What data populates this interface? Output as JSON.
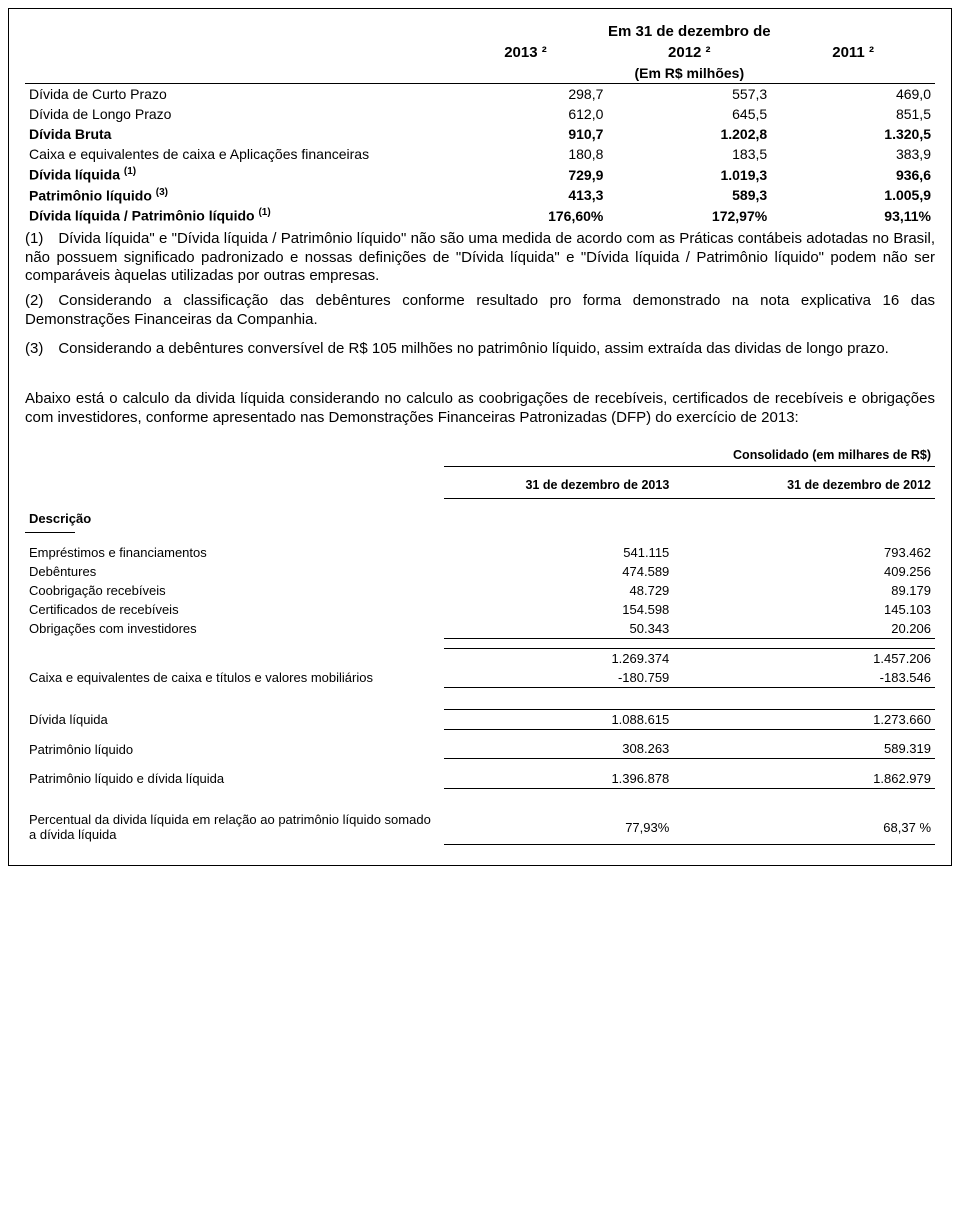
{
  "t1": {
    "super_header": "Em 31 de dezembro de",
    "col_years": [
      "2013 ²",
      "2012 ²",
      "2011 ²"
    ],
    "sub_header": "(Em R$ milhões)",
    "rows": [
      {
        "label": "Dívida de Curto Prazo",
        "v": [
          "298,7",
          "557,3",
          "469,0"
        ],
        "bold": false
      },
      {
        "label": "Dívida de Longo Prazo",
        "v": [
          "612,0",
          "645,5",
          "851,5"
        ],
        "bold": false
      },
      {
        "label": "Dívida Bruta",
        "v": [
          "910,7",
          "1.202,8",
          "1.320,5"
        ],
        "bold": true
      },
      {
        "label": "Caixa e equivalentes de caixa e Aplicações financeiras",
        "v": [
          "180,8",
          "183,5",
          "383,9"
        ],
        "bold": false
      },
      {
        "label_html": "Dívida líquida <span class=\"sup\">(1)</span>",
        "v": [
          "729,9",
          "1.019,3",
          "936,6"
        ],
        "bold": true
      },
      {
        "label_html": "Patrimônio líquido <span class=\"sup\">(3)</span>",
        "v": [
          "413,3",
          "589,3",
          "1.005,9"
        ],
        "bold": true
      },
      {
        "label_html": "Dívida líquida / Patrimônio líquido <span class=\"sup\">(1)</span>",
        "v": [
          "176,60%",
          "172,97%",
          "93,11%"
        ],
        "bold": true
      }
    ]
  },
  "notes": {
    "n1": "(1) Dívida líquida\" e \"Dívida líquida / Patrimônio líquido\" não são uma medida de acordo com as Práticas contábeis adotadas no Brasil, não possuem significado padronizado e nossas definições de \"Dívida líquida\" e \"Dívida líquida / Patrimônio líquido\" podem não ser comparáveis àquelas utilizadas por outras empresas.",
    "n2": "(2) Considerando a classificação das debêntures conforme resultado pro forma demonstrado na nota explicativa 16 das Demonstrações Financeiras da Companhia.",
    "n3": "(3) Considerando a debêntures conversível de R$ 105 milhões no patrimônio líquido, assim extraída das dividas de longo prazo."
  },
  "intro": "Abaixo está o calculo da divida líquida considerando no calculo as coobrigações de recebíveis, certificados de recebíveis e obrigações com investidores, conforme apresentado nas Demonstrações Financeiras Patronizadas (DFP) do exercício de 2013:",
  "t2": {
    "span_header": "Consolidado (em milhares de R$)",
    "col_headers": [
      "31 de dezembro de 2013",
      "31 de dezembro de 2012"
    ],
    "section_label": "Descrição",
    "rows_top": [
      {
        "label": "Empréstimos e financiamentos",
        "v": [
          "541.115",
          "793.462"
        ]
      },
      {
        "label": "Debêntures",
        "v": [
          "474.589",
          "409.256"
        ]
      },
      {
        "label": "Coobrigação recebíveis",
        "v": [
          "48.729",
          "89.179"
        ]
      },
      {
        "label": "Certificados de recebíveis",
        "v": [
          "154.598",
          "145.103"
        ]
      },
      {
        "label": "Obrigações com investidores",
        "v": [
          "50.343",
          "20.206"
        ]
      }
    ],
    "subtotal1": {
      "label": "",
      "v": [
        "1.269.374",
        "1.457.206"
      ]
    },
    "caixa": {
      "label": "Caixa e equivalentes de caixa e títulos e valores mobiliários",
      "v": [
        "-180.759",
        "-183.546"
      ]
    },
    "divida_liquida": {
      "label": "Dívida líquida",
      "v": [
        "1.088.615",
        "1.273.660"
      ]
    },
    "pl": {
      "label": "Patrimônio líquido",
      "v": [
        "308.263",
        "589.319"
      ]
    },
    "pl_divida": {
      "label": "Patrimônio líquido e dívida líquida",
      "v": [
        "1.396.878",
        "1.862.979"
      ]
    },
    "pct": {
      "label": "Percentual da divida líquida em relação ao patrimônio líquido somado a dívida líquida",
      "v": [
        "77,93%",
        "68,37 %"
      ]
    }
  }
}
